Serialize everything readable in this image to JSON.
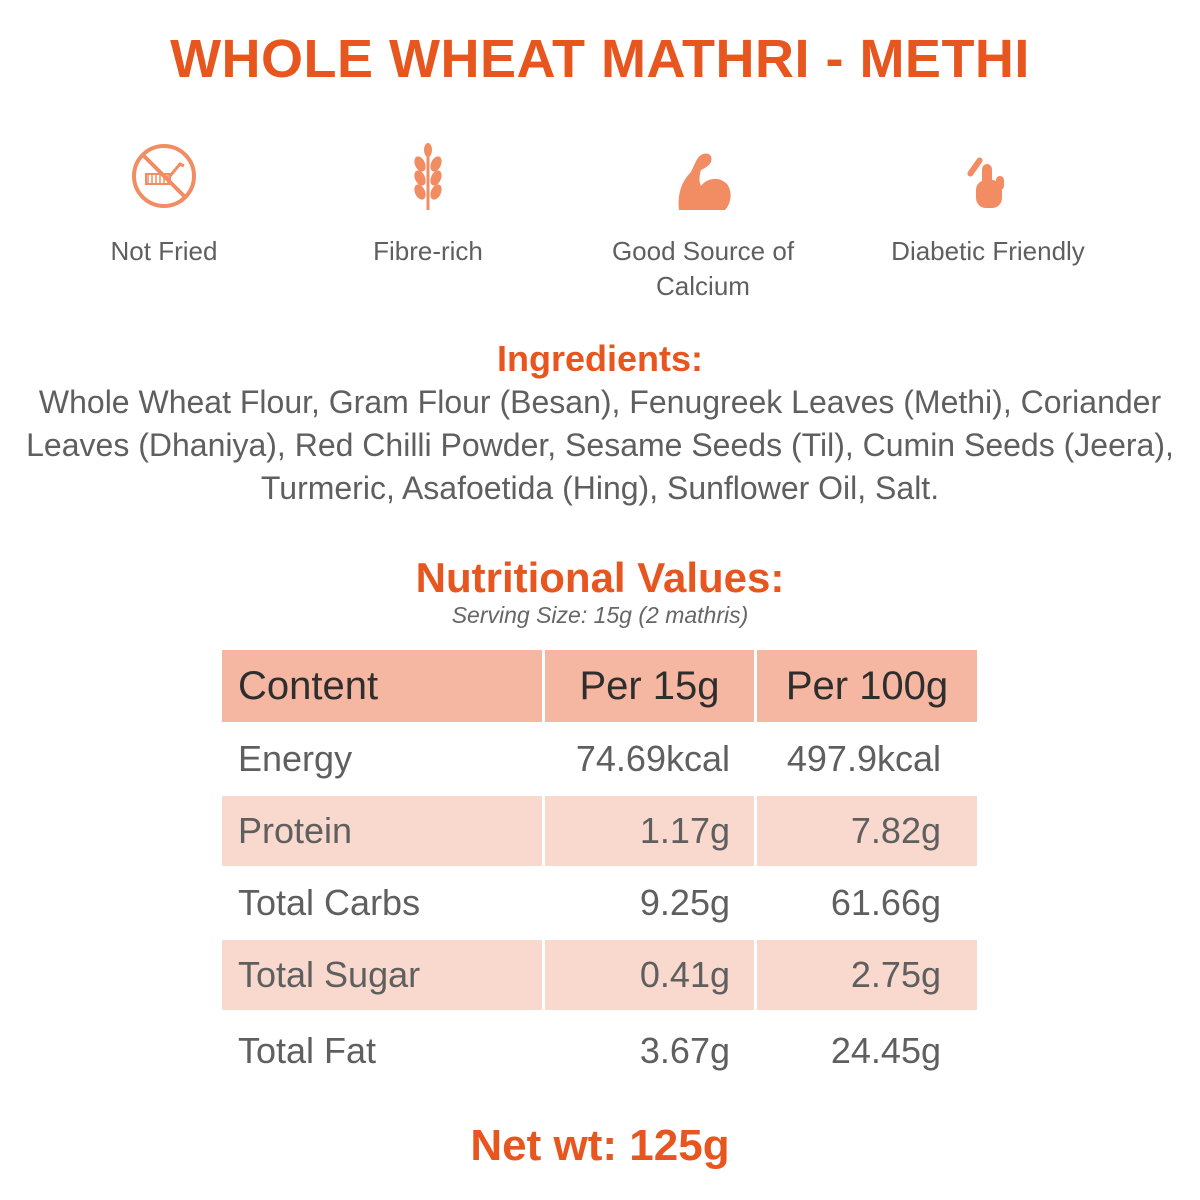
{
  "title": "WHOLE WHEAT MATHRI - METHI",
  "features": [
    {
      "icon": "not-fried-icon",
      "label": "Not Fried"
    },
    {
      "icon": "wheat-icon",
      "label": "Fibre-rich"
    },
    {
      "icon": "flexed-arm-icon",
      "label_line1": "Good Source of",
      "label_line2": "Calcium"
    },
    {
      "icon": "finger-prick-icon",
      "label": "Diabetic Friendly"
    }
  ],
  "ingredients": {
    "heading": "Ingredients:",
    "text": "Whole Wheat Flour, Gram Flour (Besan), Fenugreek Leaves (Methi), Coriander Leaves (Dhaniya), Red Chilli Powder, Sesame Seeds (Til), Cumin Seeds (Jeera), Turmeric, Asafoetida (Hing), Sunflower Oil, Salt."
  },
  "nutrition": {
    "heading": "Nutritional Values:",
    "serving": "Serving Size: 15g (2 mathris)",
    "headers": [
      "Content",
      "Per 15g",
      "Per 100g"
    ],
    "rows": [
      {
        "name": "Energy",
        "per15": "74.69kcal",
        "per100": "497.9kcal"
      },
      {
        "name": "Protein",
        "per15": "1.17g",
        "per100": "7.82g"
      },
      {
        "name": "Total Carbs",
        "per15": "9.25g",
        "per100": "61.66g"
      },
      {
        "name": "Total Sugar",
        "per15": "0.41g",
        "per100": "2.75g"
      },
      {
        "name": "Total Fat",
        "per15": "3.67g",
        "per100": "24.45g"
      }
    ]
  },
  "net_weight": "Net wt: 125g",
  "colors": {
    "accent": "#e8561f",
    "icon": "#f28c63",
    "header_row": "#f5b7a2",
    "shaded_row": "#f9d8ce"
  }
}
